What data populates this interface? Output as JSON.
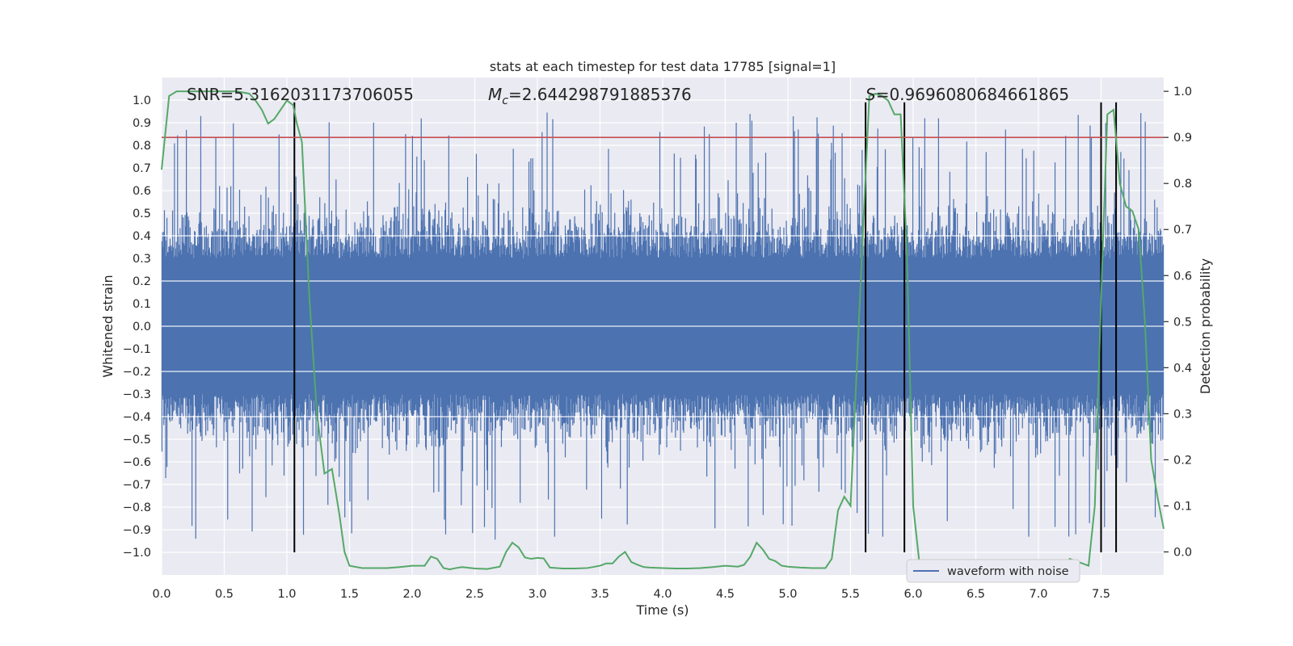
{
  "chart_data": {
    "type": "line",
    "title": "stats at each timestep for test data 17785 [signal=1]",
    "xlabel": "Time (s)",
    "ylabel": "Whitened strain",
    "y2label": "Detection probability",
    "xlim": [
      0.0,
      8.0
    ],
    "ylim": [
      -1.1,
      1.1
    ],
    "y2lim": [
      -0.05,
      1.03
    ],
    "x_ticks": [
      "0.0",
      "0.5",
      "1.0",
      "1.5",
      "2.0",
      "2.5",
      "3.0",
      "3.5",
      "4.0",
      "4.5",
      "5.0",
      "5.5",
      "6.0",
      "6.5",
      "7.0",
      "7.5"
    ],
    "x_tick_values": [
      0.0,
      0.5,
      1.0,
      1.5,
      2.0,
      2.5,
      3.0,
      3.5,
      4.0,
      4.5,
      5.0,
      5.5,
      6.0,
      6.5,
      7.0,
      7.5
    ],
    "y_ticks": [
      "1.0",
      "0.9",
      "0.8",
      "0.7",
      "0.6",
      "0.5",
      "0.4",
      "0.3",
      "0.2",
      "0.1",
      "0.0",
      "−0.1",
      "−0.2",
      "−0.3",
      "−0.4",
      "−0.5",
      "−0.6",
      "−0.7",
      "−0.8",
      "−0.9",
      "−1.0"
    ],
    "y_tick_values": [
      1.0,
      0.9,
      0.8,
      0.7,
      0.6,
      0.5,
      0.4,
      0.3,
      0.2,
      0.1,
      0.0,
      -0.1,
      -0.2,
      -0.3,
      -0.4,
      -0.5,
      -0.6,
      -0.7,
      -0.8,
      -0.9,
      -1.0
    ],
    "y2_ticks": [
      "1.0",
      "0.9",
      "0.8",
      "0.7",
      "0.6",
      "0.5",
      "0.4",
      "0.3",
      "0.2",
      "0.1",
      "0.0"
    ],
    "y2_tick_values": [
      1.0,
      0.9,
      0.8,
      0.7,
      0.6,
      0.5,
      0.4,
      0.3,
      0.2,
      0.1,
      0.0
    ],
    "annotations": {
      "snr": "SNR=5.3162031173706055",
      "mc_symbol": "M",
      "mc_subscript": "c",
      "mc_value": "=2.644298791885376",
      "s_symbol": "S",
      "s_value": "=0.9696080684661865"
    },
    "legend": {
      "label": "waveform with noise",
      "position": "lower right"
    },
    "threshold": {
      "y2": 0.9,
      "color": "#c44e52"
    },
    "vlines_x": [
      1.06,
      5.62,
      5.93,
      7.5,
      7.62
    ],
    "series": [
      {
        "name": "waveform with noise",
        "axis": "y",
        "color": "#4c72b0",
        "description": "dense whitened strain noise, bulk amplitude about ±0.4, spikes to about ±1.0",
        "n_samples": 1600,
        "seed": 17785
      },
      {
        "name": "detection probability",
        "axis": "y2",
        "color": "#55a868",
        "x": [
          0.0,
          0.06,
          0.12,
          0.2,
          0.3,
          0.4,
          0.5,
          0.6,
          0.7,
          0.75,
          0.8,
          0.85,
          0.9,
          0.95,
          1.0,
          1.05,
          1.08,
          1.12,
          1.18,
          1.24,
          1.3,
          1.36,
          1.42,
          1.46,
          1.5,
          1.6,
          1.7,
          1.8,
          1.9,
          2.0,
          2.05,
          2.1,
          2.15,
          2.2,
          2.25,
          2.3,
          2.35,
          2.4,
          2.5,
          2.6,
          2.7,
          2.75,
          2.8,
          2.85,
          2.9,
          2.95,
          3.0,
          3.05,
          3.1,
          3.2,
          3.3,
          3.4,
          3.5,
          3.55,
          3.6,
          3.65,
          3.7,
          3.75,
          3.8,
          3.85,
          3.9,
          4.0,
          4.1,
          4.2,
          4.3,
          4.4,
          4.5,
          4.6,
          4.65,
          4.7,
          4.75,
          4.8,
          4.85,
          4.9,
          4.95,
          5.0,
          5.1,
          5.2,
          5.3,
          5.35,
          5.4,
          5.45,
          5.5,
          5.55,
          5.6,
          5.65,
          5.7,
          5.75,
          5.8,
          5.85,
          5.9,
          5.95,
          6.0,
          6.05,
          6.1,
          6.2,
          6.25,
          6.3,
          6.35,
          6.4,
          6.5,
          6.6,
          6.7,
          6.8,
          6.9,
          7.0,
          7.1,
          7.2,
          7.25,
          7.3,
          7.35,
          7.4,
          7.45,
          7.5,
          7.55,
          7.6,
          7.65,
          7.7,
          7.75,
          7.8,
          7.85,
          7.9,
          7.95,
          8.0
        ],
        "values": [
          0.83,
          0.99,
          1.0,
          1.0,
          1.0,
          1.0,
          1.0,
          1.0,
          0.995,
          0.98,
          0.96,
          0.93,
          0.94,
          0.96,
          0.98,
          0.97,
          0.93,
          0.89,
          0.55,
          0.3,
          0.17,
          0.18,
          0.08,
          0.0,
          -0.03,
          -0.035,
          -0.035,
          -0.035,
          -0.033,
          -0.03,
          -0.03,
          -0.03,
          -0.01,
          -0.015,
          -0.035,
          -0.038,
          -0.035,
          -0.033,
          -0.036,
          -0.037,
          -0.032,
          0.0,
          0.02,
          0.01,
          -0.012,
          -0.015,
          -0.013,
          -0.014,
          -0.034,
          -0.036,
          -0.036,
          -0.035,
          -0.03,
          -0.025,
          -0.025,
          -0.01,
          0.0,
          -0.022,
          -0.028,
          -0.033,
          -0.034,
          -0.035,
          -0.036,
          -0.036,
          -0.035,
          -0.033,
          -0.03,
          -0.032,
          -0.028,
          -0.01,
          0.02,
          0.005,
          -0.015,
          -0.02,
          -0.03,
          -0.032,
          -0.034,
          -0.035,
          -0.035,
          -0.015,
          0.09,
          0.12,
          0.1,
          0.4,
          0.7,
          0.99,
          0.995,
          0.99,
          0.98,
          0.95,
          0.95,
          0.65,
          0.1,
          -0.025,
          -0.025,
          -0.02,
          -0.03,
          -0.035,
          -0.035,
          -0.033,
          -0.034,
          -0.035,
          -0.035,
          -0.035,
          -0.035,
          -0.035,
          -0.035,
          -0.03,
          -0.015,
          -0.02,
          -0.025,
          -0.03,
          0.1,
          0.55,
          0.95,
          0.96,
          0.8,
          0.75,
          0.74,
          0.7,
          0.5,
          0.2,
          0.12,
          0.05
        ]
      }
    ],
    "colors": {
      "plot_bg": "#eaeaf2",
      "grid": "#ffffff",
      "vline": "#000000"
    }
  }
}
